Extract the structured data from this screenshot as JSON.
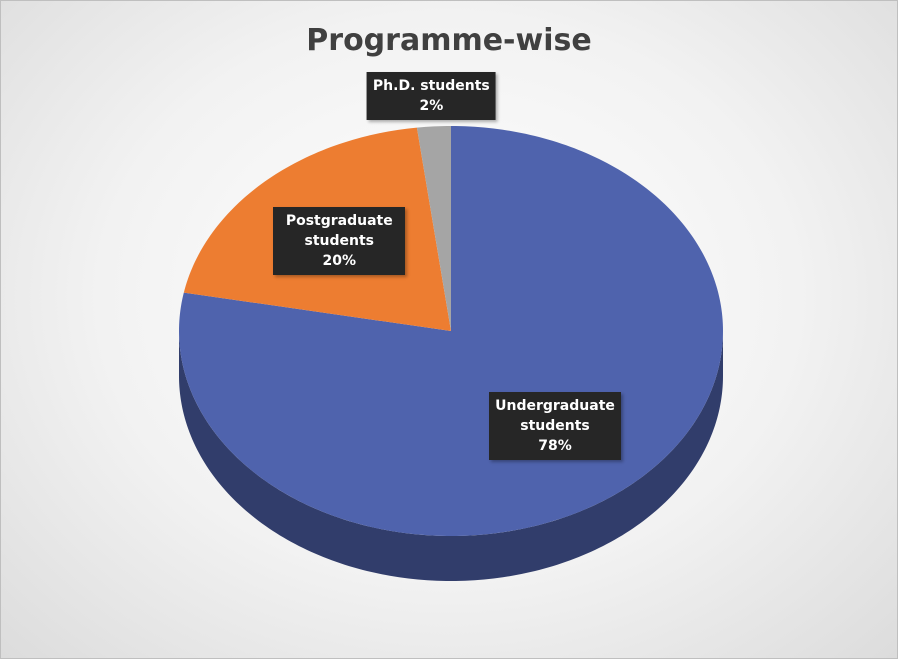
{
  "chart_data": {
    "type": "pie",
    "title": "Programme-wise",
    "categories": [
      "Undergraduate students",
      "Postgraduate students",
      "Ph.D. students"
    ],
    "values": [
      78,
      20,
      2
    ],
    "value_labels": [
      "78%",
      "20%",
      "2%"
    ],
    "colors": [
      "#4f63ad",
      "#ed7d31",
      "#a5a5a5"
    ]
  }
}
